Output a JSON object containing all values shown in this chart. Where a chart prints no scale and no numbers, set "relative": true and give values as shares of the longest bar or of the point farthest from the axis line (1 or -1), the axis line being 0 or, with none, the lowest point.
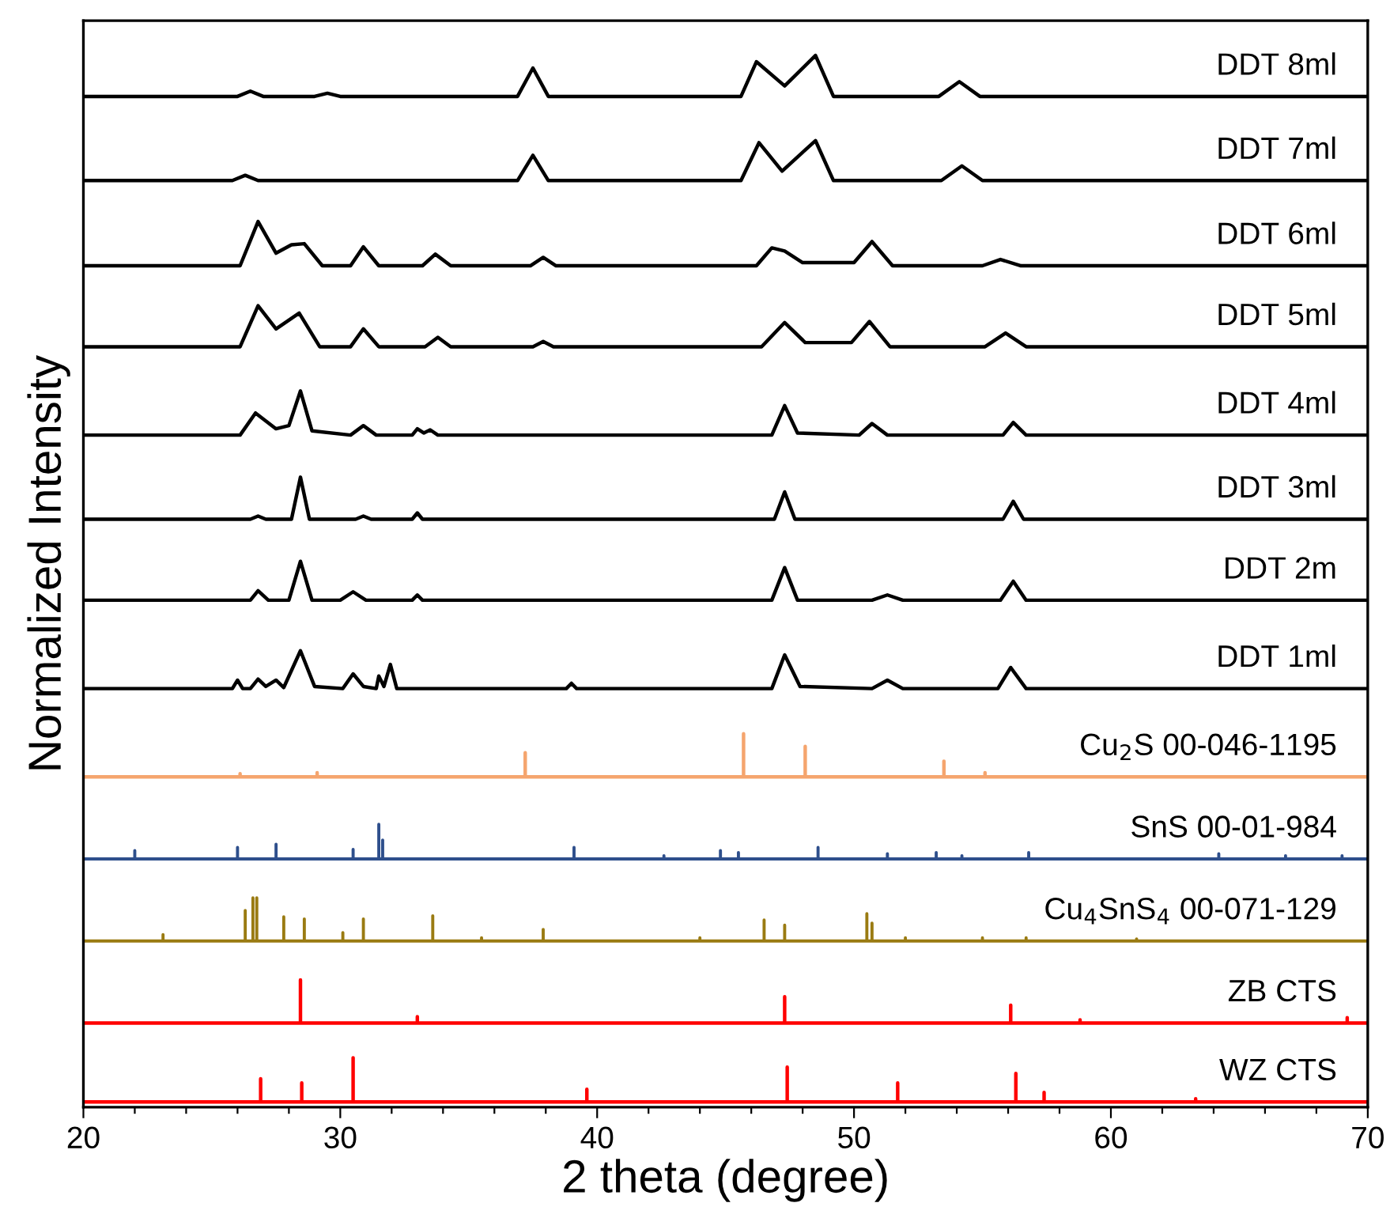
{
  "chart_data": {
    "type": "line",
    "relative": true,
    "xlabel": "2 theta (degree)",
    "ylabel": "Normalized Intensity",
    "xlim": [
      20,
      70
    ],
    "xticks": [
      20,
      {
        "value": 22,
        "label": null
      },
      {
        "value": 24,
        "label": null
      },
      {
        "value": 26,
        "label": null
      },
      {
        "value": 28,
        "label": null
      },
      30,
      {
        "value": 32,
        "label": null
      },
      {
        "value": 34,
        "label": null
      },
      {
        "value": 36,
        "label": null
      },
      {
        "value": 38,
        "label": null
      },
      40,
      {
        "value": 42,
        "label": null
      },
      {
        "value": 44,
        "label": null
      },
      {
        "value": 46,
        "label": null
      },
      {
        "value": 48,
        "label": null
      },
      50,
      {
        "value": 52,
        "label": null
      },
      {
        "value": 54,
        "label": null
      },
      {
        "value": 56,
        "label": null
      },
      {
        "value": 58,
        "label": null
      },
      60,
      {
        "value": 62,
        "label": null
      },
      {
        "value": 64,
        "label": null
      },
      {
        "value": 66,
        "label": null
      },
      {
        "value": 68,
        "label": null
      },
      70
    ],
    "tick_labels": "x",
    "series": [
      {
        "name": "DDT 8ml",
        "color": "#000000",
        "x": [
          20,
          26.0,
          26.5,
          27.0,
          29.0,
          29.5,
          30.0,
          36.9,
          37.5,
          38.1,
          45.6,
          46.2,
          47.3,
          48.5,
          49.2,
          53.3,
          54.1,
          54.9,
          70
        ],
        "values": [
          0.961,
          0.961,
          0.966,
          0.961,
          0.961,
          0.964,
          0.961,
          0.961,
          0.988,
          0.961,
          0.961,
          0.994,
          0.971,
          1.0,
          0.961,
          0.961,
          0.975,
          0.961,
          0.961
        ]
      },
      {
        "name": "DDT 7ml",
        "color": "#000000",
        "x": [
          20,
          25.8,
          26.3,
          26.8,
          36.9,
          37.5,
          38.1,
          45.6,
          46.3,
          47.2,
          48.5,
          49.2,
          53.4,
          54.2,
          55.0,
          70
        ],
        "values": [
          0.881,
          0.881,
          0.886,
          0.881,
          0.881,
          0.905,
          0.881,
          0.881,
          0.917,
          0.89,
          0.919,
          0.881,
          0.881,
          0.895,
          0.881,
          0.881
        ]
      },
      {
        "name": "DDT 6ml",
        "color": "#000000",
        "x": [
          20,
          26.1,
          26.8,
          27.5,
          28.1,
          28.6,
          29.3,
          30.4,
          30.9,
          31.5,
          33.2,
          33.7,
          34.3,
          37.4,
          37.9,
          38.4,
          46.2,
          46.8,
          47.3,
          48.0,
          50.0,
          50.7,
          51.5,
          55.0,
          55.7,
          56.5,
          70
        ],
        "values": [
          0.8,
          0.8,
          0.842,
          0.812,
          0.82,
          0.821,
          0.8,
          0.8,
          0.818,
          0.8,
          0.8,
          0.811,
          0.8,
          0.8,
          0.808,
          0.8,
          0.8,
          0.817,
          0.814,
          0.803,
          0.803,
          0.823,
          0.8,
          0.8,
          0.806,
          0.8,
          0.8
        ]
      },
      {
        "name": "DDT 5ml",
        "color": "#000000",
        "x": [
          20,
          26.1,
          26.8,
          27.5,
          28.4,
          29.2,
          30.4,
          30.9,
          31.5,
          33.3,
          33.8,
          34.3,
          37.5,
          37.9,
          38.3,
          46.4,
          47.3,
          48.1,
          49.9,
          50.6,
          51.4,
          55.1,
          55.9,
          56.7,
          70
        ],
        "values": [
          0.723,
          0.723,
          0.762,
          0.74,
          0.755,
          0.723,
          0.723,
          0.74,
          0.723,
          0.723,
          0.732,
          0.723,
          0.723,
          0.728,
          0.723,
          0.723,
          0.746,
          0.727,
          0.727,
          0.747,
          0.723,
          0.723,
          0.736,
          0.723,
          0.723
        ]
      },
      {
        "name": "DDT 4ml",
        "color": "#000000",
        "x": [
          20,
          26.1,
          26.7,
          27.5,
          28.0,
          28.45,
          28.9,
          30.4,
          30.9,
          31.4,
          32.8,
          33.0,
          33.25,
          33.5,
          33.8,
          46.8,
          47.3,
          47.8,
          50.2,
          50.7,
          51.3,
          55.8,
          56.2,
          56.7,
          70
        ],
        "values": [
          0.639,
          0.639,
          0.66,
          0.645,
          0.648,
          0.681,
          0.643,
          0.639,
          0.648,
          0.639,
          0.639,
          0.645,
          0.641,
          0.644,
          0.639,
          0.639,
          0.667,
          0.641,
          0.639,
          0.65,
          0.639,
          0.639,
          0.651,
          0.639,
          0.639
        ]
      },
      {
        "name": "DDT 3ml",
        "color": "#000000",
        "x": [
          20,
          26.5,
          26.8,
          27.1,
          28.1,
          28.45,
          28.8,
          30.6,
          30.9,
          31.2,
          32.8,
          33.0,
          33.2,
          46.9,
          47.3,
          47.7,
          55.8,
          56.2,
          56.6,
          70
        ],
        "values": [
          0.559,
          0.559,
          0.562,
          0.559,
          0.559,
          0.599,
          0.559,
          0.559,
          0.562,
          0.559,
          0.559,
          0.565,
          0.559,
          0.559,
          0.585,
          0.559,
          0.559,
          0.576,
          0.559,
          0.559
        ]
      },
      {
        "name": "DDT 2m",
        "color": "#000000",
        "x": [
          20,
          26.5,
          26.8,
          27.2,
          28.0,
          28.45,
          28.9,
          30.0,
          30.5,
          31.0,
          32.8,
          33.0,
          33.2,
          46.8,
          47.3,
          47.8,
          50.7,
          51.3,
          51.9,
          55.7,
          56.2,
          56.7,
          70
        ],
        "values": [
          0.482,
          0.482,
          0.491,
          0.482,
          0.482,
          0.519,
          0.482,
          0.482,
          0.49,
          0.482,
          0.482,
          0.487,
          0.482,
          0.482,
          0.513,
          0.482,
          0.482,
          0.487,
          0.482,
          0.482,
          0.5,
          0.482,
          0.482
        ]
      },
      {
        "name": "DDT 1ml",
        "color": "#000000",
        "x": [
          20,
          25.8,
          26.0,
          26.2,
          26.5,
          26.8,
          27.1,
          27.5,
          27.8,
          28.45,
          29.0,
          30.1,
          30.5,
          30.9,
          31.4,
          31.5,
          31.7,
          31.95,
          32.2,
          38.8,
          39.0,
          39.2,
          46.8,
          47.3,
          47.9,
          50.7,
          51.3,
          51.9,
          55.6,
          56.1,
          56.7,
          70
        ],
        "values": [
          0.398,
          0.398,
          0.406,
          0.398,
          0.398,
          0.407,
          0.4,
          0.406,
          0.399,
          0.434,
          0.4,
          0.398,
          0.412,
          0.4,
          0.398,
          0.41,
          0.4,
          0.421,
          0.398,
          0.398,
          0.403,
          0.398,
          0.398,
          0.43,
          0.4,
          0.398,
          0.406,
          0.398,
          0.398,
          0.418,
          0.398,
          0.398
        ]
      },
      {
        "name": "Cu$_{2}$S 00-046-1195",
        "color": "#f5a56e",
        "x": [
          20,
          26.1,
          26.1,
          26.1,
          29.1,
          29.1,
          29.1,
          37.2,
          37.2,
          37.2,
          45.7,
          45.7,
          45.7,
          48.1,
          48.1,
          48.1,
          53.5,
          53.5,
          53.5,
          55.1,
          55.1,
          55.1,
          70
        ],
        "values": [
          0.314,
          0.314,
          0.317,
          0.314,
          0.314,
          0.318,
          0.314,
          0.314,
          0.337,
          0.314,
          0.314,
          0.355,
          0.314,
          0.314,
          0.343,
          0.314,
          0.314,
          0.329,
          0.314,
          0.314,
          0.318,
          0.314,
          0.314
        ]
      },
      {
        "name": "SnS 00-01-984",
        "color": "#2e4f8c",
        "x": [
          20,
          22.0,
          22.0,
          22.0,
          26.0,
          26.0,
          26.0,
          27.5,
          27.5,
          27.5,
          30.5,
          30.5,
          30.5,
          31.5,
          31.5,
          31.5,
          31.65,
          31.65,
          31.65,
          39.1,
          39.1,
          39.1,
          42.6,
          42.6,
          42.6,
          44.8,
          44.8,
          44.8,
          45.5,
          45.5,
          45.5,
          48.6,
          48.6,
          48.6,
          51.3,
          51.3,
          51.3,
          53.2,
          53.2,
          53.2,
          54.2,
          54.2,
          54.2,
          56.8,
          56.8,
          56.8,
          64.2,
          64.2,
          64.2,
          66.8,
          66.8,
          66.8,
          69.0,
          69.0,
          69.0,
          70
        ],
        "values": [
          0.236,
          0.236,
          0.244,
          0.236,
          0.236,
          0.247,
          0.236,
          0.236,
          0.25,
          0.236,
          0.236,
          0.245,
          0.236,
          0.236,
          0.269,
          0.236,
          0.236,
          0.254,
          0.236,
          0.236,
          0.247,
          0.236,
          0.236,
          0.239,
          0.236,
          0.236,
          0.244,
          0.236,
          0.236,
          0.242,
          0.236,
          0.236,
          0.247,
          0.236,
          0.236,
          0.241,
          0.236,
          0.236,
          0.242,
          0.236,
          0.236,
          0.239,
          0.236,
          0.236,
          0.242,
          0.236,
          0.236,
          0.241,
          0.236,
          0.236,
          0.239,
          0.236,
          0.236,
          0.239,
          0.236,
          0.236
        ]
      },
      {
        "name": "Cu$_{4}$SnS$_{4}$ 00-071-129",
        "color": "#9a7b12",
        "x": [
          20,
          23.1,
          23.1,
          23.1,
          26.3,
          26.3,
          26.3,
          26.6,
          26.6,
          26.6,
          26.75,
          26.75,
          26.75,
          27.8,
          27.8,
          27.8,
          28.6,
          28.6,
          28.6,
          30.1,
          30.1,
          30.1,
          30.9,
          30.9,
          30.9,
          33.6,
          33.6,
          33.6,
          35.5,
          35.5,
          35.5,
          37.9,
          37.9,
          37.9,
          44.0,
          44.0,
          44.0,
          46.5,
          46.5,
          46.5,
          47.3,
          47.3,
          47.3,
          50.5,
          50.5,
          50.5,
          50.7,
          50.7,
          50.7,
          52.0,
          52.0,
          52.0,
          55.0,
          55.0,
          55.0,
          56.7,
          56.7,
          56.7,
          61.0,
          61.0,
          61.0,
          70
        ],
        "values": [
          0.158,
          0.158,
          0.164,
          0.158,
          0.158,
          0.187,
          0.158,
          0.158,
          0.199,
          0.158,
          0.158,
          0.199,
          0.158,
          0.158,
          0.181,
          0.158,
          0.158,
          0.179,
          0.158,
          0.158,
          0.166,
          0.158,
          0.158,
          0.179,
          0.158,
          0.158,
          0.182,
          0.158,
          0.158,
          0.161,
          0.158,
          0.158,
          0.169,
          0.158,
          0.158,
          0.161,
          0.158,
          0.158,
          0.178,
          0.158,
          0.158,
          0.173,
          0.158,
          0.158,
          0.184,
          0.158,
          0.158,
          0.175,
          0.158,
          0.158,
          0.161,
          0.158,
          0.158,
          0.161,
          0.158,
          0.158,
          0.161,
          0.158,
          0.158,
          0.16,
          0.158,
          0.158
        ]
      },
      {
        "name": "ZB CTS",
        "color": "#ff0000",
        "x": [
          20,
          28.45,
          28.45,
          28.45,
          33.0,
          33.0,
          33.0,
          47.3,
          47.3,
          47.3,
          56.1,
          56.1,
          56.1,
          58.8,
          58.8,
          58.8,
          69.2,
          69.2,
          69.2,
          70
        ],
        "values": [
          0.08,
          0.08,
          0.121,
          0.08,
          0.08,
          0.086,
          0.08,
          0.08,
          0.105,
          0.08,
          0.08,
          0.097,
          0.08,
          0.08,
          0.083,
          0.08,
          0.08,
          0.085,
          0.08,
          0.08
        ]
      },
      {
        "name": "WZ CTS",
        "color": "#ff0000",
        "x": [
          20,
          26.9,
          26.9,
          26.9,
          28.5,
          28.5,
          28.5,
          30.5,
          30.5,
          30.5,
          39.6,
          39.6,
          39.6,
          47.4,
          47.4,
          47.4,
          51.7,
          51.7,
          51.7,
          56.3,
          56.3,
          56.3,
          57.4,
          57.4,
          57.4,
          63.3,
          63.3,
          63.3,
          70
        ],
        "values": [
          0.005,
          0.005,
          0.027,
          0.005,
          0.005,
          0.023,
          0.005,
          0.005,
          0.047,
          0.005,
          0.005,
          0.017,
          0.005,
          0.005,
          0.038,
          0.005,
          0.005,
          0.023,
          0.005,
          0.005,
          0.032,
          0.005,
          0.005,
          0.014,
          0.005,
          0.005,
          0.008,
          0.005,
          0.005
        ]
      }
    ]
  }
}
